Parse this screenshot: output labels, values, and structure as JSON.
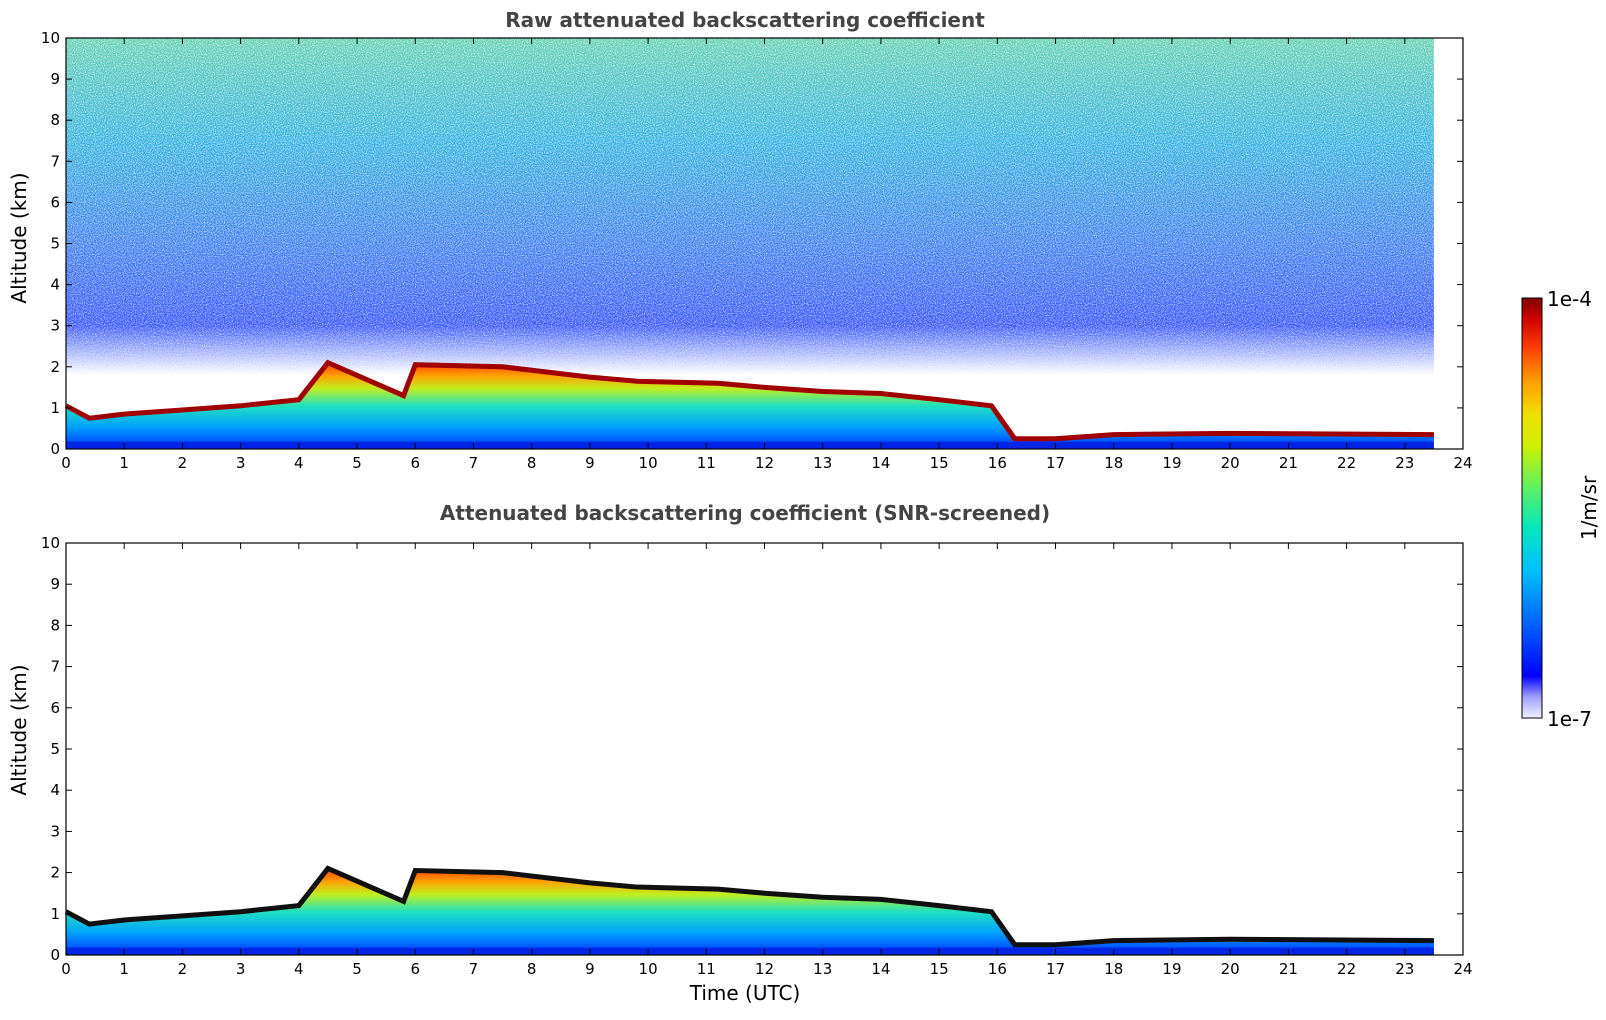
{
  "chart_data": [
    {
      "type": "heatmap",
      "title": "Raw attenuated backscattering coefficient",
      "xlabel": "",
      "ylabel": "Altitude (km)",
      "xlim": [
        0,
        24
      ],
      "ylim": [
        0,
        10
      ],
      "xticks": [
        "0",
        "1",
        "2",
        "3",
        "4",
        "5",
        "6",
        "7",
        "8",
        "9",
        "10",
        "11",
        "12",
        "13",
        "14",
        "15",
        "16",
        "17",
        "18",
        "19",
        "20",
        "21",
        "22",
        "23",
        "24"
      ],
      "yticks": [
        "0",
        "1",
        "2",
        "3",
        "4",
        "5",
        "6",
        "7",
        "8",
        "9",
        "10"
      ],
      "data_end_hour": 23.5,
      "noise": true,
      "cloud_layer": [
        {
          "t": 0.0,
          "base": 0.0,
          "top": 1.05
        },
        {
          "t": 0.4,
          "base": 0.0,
          "top": 0.75
        },
        {
          "t": 1.0,
          "base": 0.0,
          "top": 0.85
        },
        {
          "t": 2.0,
          "base": 0.0,
          "top": 0.95
        },
        {
          "t": 3.0,
          "base": 0.0,
          "top": 1.05
        },
        {
          "t": 4.0,
          "base": 0.0,
          "top": 1.2
        },
        {
          "t": 4.5,
          "base": 0.0,
          "top": 2.1
        },
        {
          "t": 5.8,
          "base": 0.0,
          "top": 1.3
        },
        {
          "t": 6.0,
          "base": 0.0,
          "top": 2.05
        },
        {
          "t": 7.5,
          "base": 0.0,
          "top": 2.0
        },
        {
          "t": 9.0,
          "base": 0.0,
          "top": 1.75
        },
        {
          "t": 9.8,
          "base": 0.0,
          "top": 1.65
        },
        {
          "t": 11.2,
          "base": 0.0,
          "top": 1.6
        },
        {
          "t": 12.0,
          "base": 0.0,
          "top": 1.5
        },
        {
          "t": 13.0,
          "base": 0.0,
          "top": 1.4
        },
        {
          "t": 14.0,
          "base": 0.0,
          "top": 1.35
        },
        {
          "t": 15.0,
          "base": 0.0,
          "top": 1.2
        },
        {
          "t": 15.9,
          "base": 0.0,
          "top": 1.05
        },
        {
          "t": 16.3,
          "base": 0.0,
          "top": 0.25
        },
        {
          "t": 17.0,
          "base": 0.0,
          "top": 0.25
        },
        {
          "t": 18.0,
          "base": 0.0,
          "top": 0.35
        },
        {
          "t": 20.0,
          "base": 0.0,
          "top": 0.38
        },
        {
          "t": 23.5,
          "base": 0.0,
          "top": 0.35
        }
      ]
    },
    {
      "type": "heatmap",
      "title": "Attenuated backscattering coefficient (SNR-screened)",
      "xlabel": "Time (UTC)",
      "ylabel": "Altitude (km)",
      "xlim": [
        0,
        24
      ],
      "ylim": [
        0,
        10
      ],
      "xticks": [
        "0",
        "1",
        "2",
        "3",
        "4",
        "5",
        "6",
        "7",
        "8",
        "9",
        "10",
        "11",
        "12",
        "13",
        "14",
        "15",
        "16",
        "17",
        "18",
        "19",
        "20",
        "21",
        "22",
        "23",
        "24"
      ],
      "yticks": [
        "0",
        "1",
        "2",
        "3",
        "4",
        "5",
        "6",
        "7",
        "8",
        "9",
        "10"
      ],
      "data_end_hour": 23.5,
      "noise": false
    }
  ],
  "colorbar": {
    "label": "1/m/sr",
    "max_label": "1e-4",
    "min_label": "1e-7",
    "colors": [
      "#e8e8ff",
      "#b0b0ff",
      "#3030ff",
      "#0000ff",
      "#0050ff",
      "#00a0ff",
      "#00e0e0",
      "#40f0a0",
      "#a0f040",
      "#f0f000",
      "#ffb000",
      "#ff6000",
      "#e00000",
      "#800000"
    ]
  }
}
